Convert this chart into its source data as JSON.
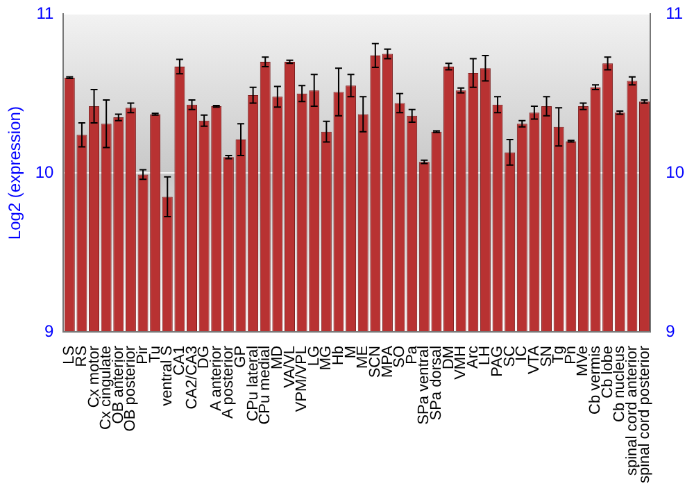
{
  "chart_data": {
    "type": "bar",
    "ylabel": "Log2 (expression)",
    "categories": [
      "LS",
      "RS",
      "Cx motor",
      "Cx cingulate",
      "OB anterior",
      "OB posterior",
      "Pir",
      "Tu",
      "ventral S",
      "CA1",
      "CA2/CA3",
      "DG",
      "A anterior",
      "A posterior",
      "GP",
      "CPu lateral",
      "CPu medial",
      "MD",
      "VA/VL",
      "VPM/VPL",
      "LG",
      "MG",
      "Hb",
      "M",
      "ME",
      "SCN",
      "MPA",
      "SO",
      "Pa",
      "SPa ventral",
      "SPa dorsal",
      "DM",
      "VMH",
      "Arc",
      "LH",
      "PAG",
      "SC",
      "IC",
      "VTA",
      "SN",
      "Tg",
      "Pn",
      "MVe",
      "Cb vermis",
      "Cb lobe",
      "Cb nucleus",
      "spinal cord anterior",
      "spinal cord posterior"
    ],
    "values": [
      10.6,
      10.24,
      10.42,
      10.31,
      10.35,
      10.41,
      9.99,
      10.37,
      9.85,
      10.67,
      10.43,
      10.33,
      10.42,
      10.1,
      10.21,
      10.49,
      10.7,
      10.48,
      10.7,
      10.5,
      10.52,
      10.26,
      10.51,
      10.55,
      10.37,
      10.74,
      10.75,
      10.44,
      10.36,
      10.07,
      10.26,
      10.67,
      10.52,
      10.63,
      10.66,
      10.43,
      10.13,
      10.31,
      10.38,
      10.42,
      10.29,
      10.2,
      10.42,
      10.54,
      10.69,
      10.38,
      10.58,
      10.45
    ],
    "errors": [
      0.005,
      0.075,
      0.105,
      0.15,
      0.02,
      0.03,
      0.03,
      0.005,
      0.125,
      0.045,
      0.03,
      0.035,
      0.005,
      0.01,
      0.1,
      0.05,
      0.03,
      0.065,
      0.01,
      0.05,
      0.1,
      0.065,
      0.15,
      0.07,
      0.11,
      0.075,
      0.03,
      0.06,
      0.04,
      0.01,
      0.005,
      0.02,
      0.015,
      0.09,
      0.08,
      0.05,
      0.08,
      0.02,
      0.04,
      0.06,
      0.12,
      0.005,
      0.02,
      0.015,
      0.04,
      0.01,
      0.025,
      0.01
    ],
    "color": "#b83232",
    "ylim": [
      9,
      11
    ],
    "yticks": [
      9,
      10,
      11
    ],
    "y2lim": [
      9,
      11
    ],
    "y2ticks": [
      9,
      10,
      11
    ],
    "grid": "y",
    "legend": false
  }
}
